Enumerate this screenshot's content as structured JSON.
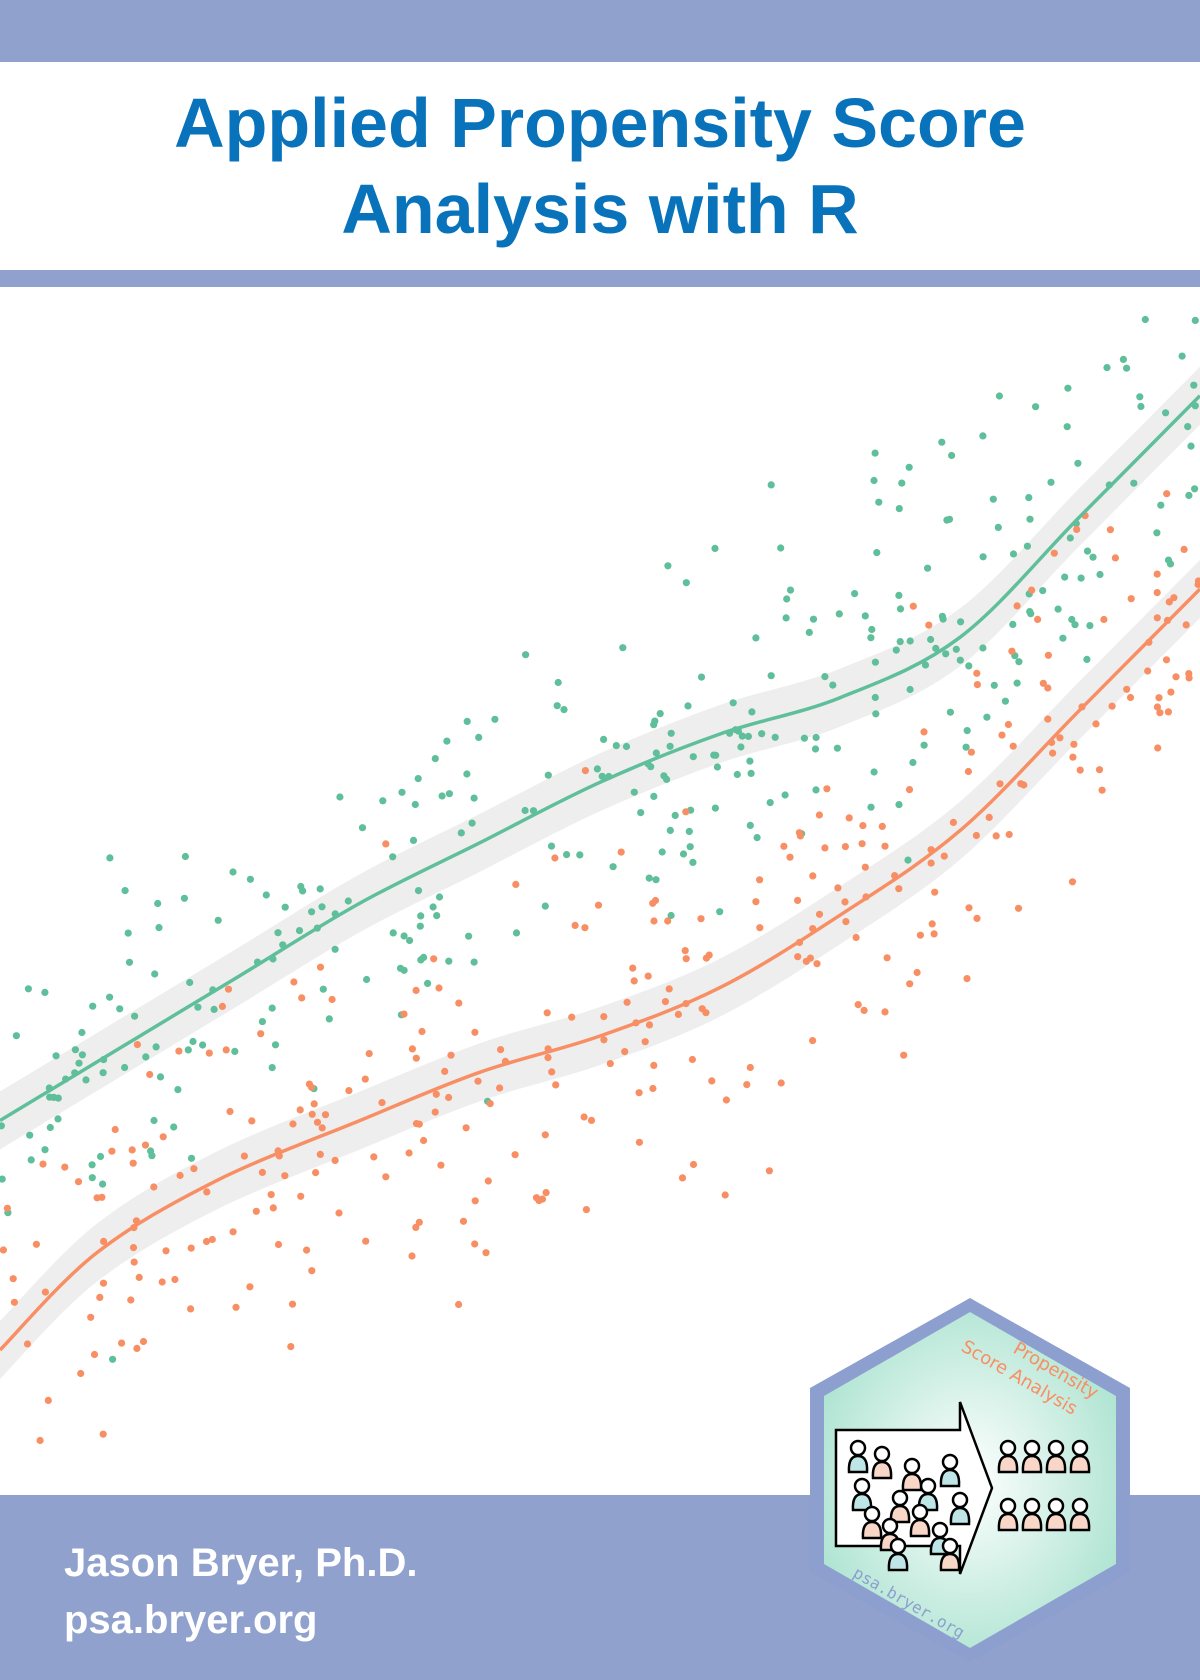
{
  "cover": {
    "title_line_1": "Applied Propensity Score",
    "title_line_2": "Analysis with R",
    "author": "Jason Bryer, Ph.D.",
    "website": "psa.bryer.org"
  },
  "logo": {
    "label_line_1": "Propensity",
    "label_line_2": "Score Analysis",
    "url": "psa.bryer.org",
    "icon": "people-matching-icon"
  },
  "colors": {
    "band": "#8fa1cc",
    "title": "#0873bb",
    "treated": "#5fbf9a",
    "control": "#f88f64",
    "ribbon": "#ebebeb",
    "hex_border": "#8c9fcf",
    "hex_fill": "#bfe9db",
    "logo_text": "#f88f64"
  },
  "chart_data": {
    "type": "scatter",
    "title": "",
    "xlabel": "",
    "ylabel": "",
    "xlim": [
      0,
      100
    ],
    "ylim": [
      0,
      100
    ],
    "grid": false,
    "legend": "none",
    "series": [
      {
        "color": "#5fbf9a",
        "values_count": 320,
        "trend": [
          [
            0,
            31
          ],
          [
            10,
            37
          ],
          [
            20,
            43
          ],
          [
            30,
            49
          ],
          [
            40,
            54
          ],
          [
            50,
            59
          ],
          [
            60,
            63
          ],
          [
            70,
            66
          ],
          [
            80,
            71
          ],
          [
            90,
            81
          ],
          [
            100,
            91
          ]
        ]
      },
      {
        "color": "#f88f64",
        "values_count": 320,
        "trend": [
          [
            0,
            12
          ],
          [
            8,
            20
          ],
          [
            18,
            26
          ],
          [
            30,
            31
          ],
          [
            40,
            35
          ],
          [
            50,
            38
          ],
          [
            60,
            42
          ],
          [
            70,
            48
          ],
          [
            80,
            55
          ],
          [
            90,
            65
          ],
          [
            100,
            75
          ]
        ]
      }
    ]
  }
}
